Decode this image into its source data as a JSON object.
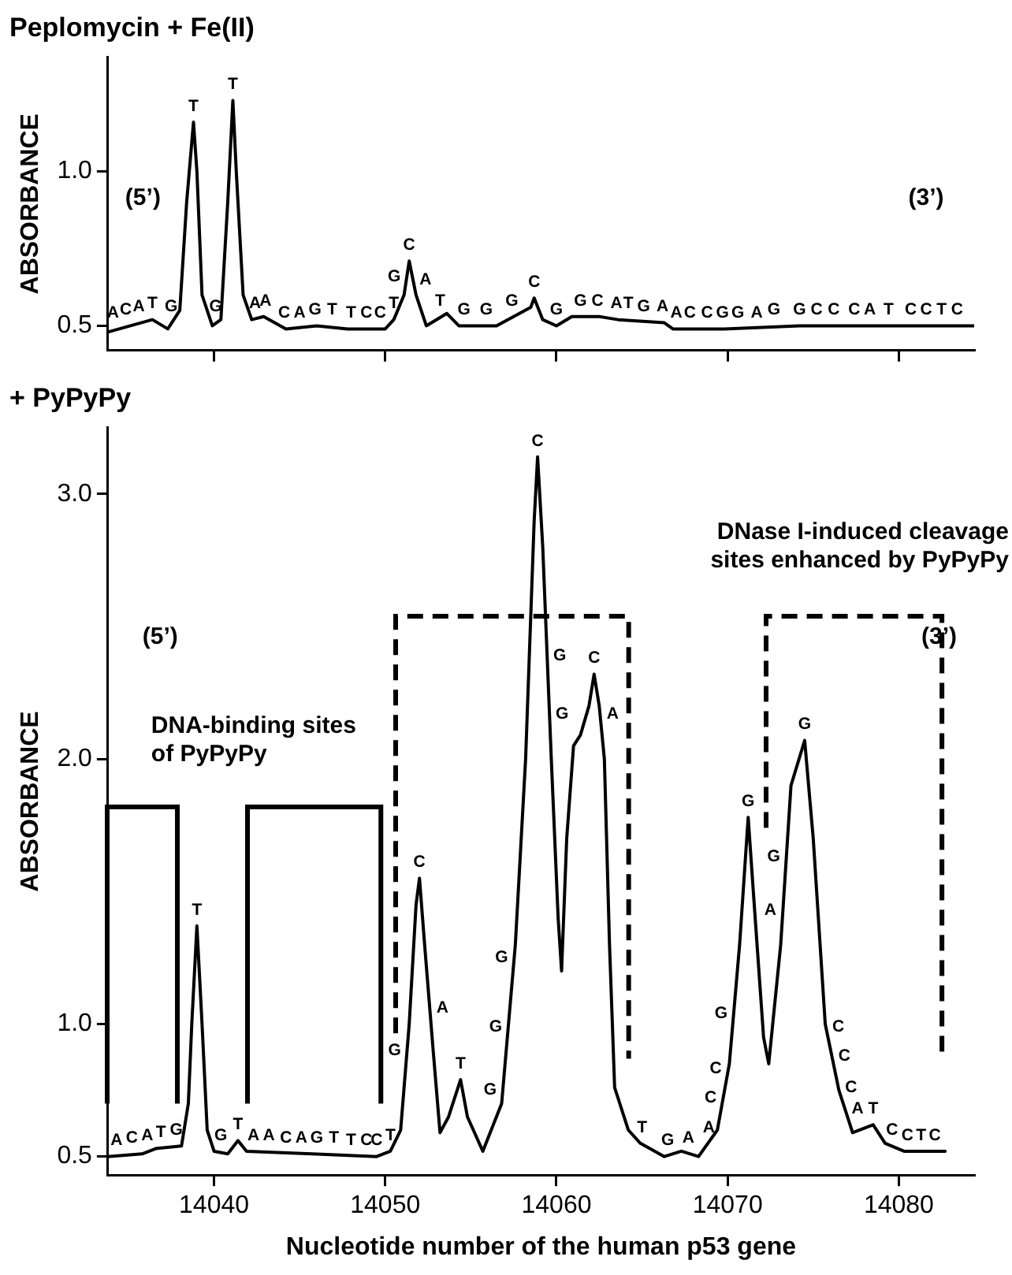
{
  "chart_data": [
    {
      "type": "line",
      "title": "Peplomycin + Fe(II)",
      "ylabel": "ABSORBANCE",
      "xlim": [
        14033.8,
        14084.4
      ],
      "xticks": [
        14040,
        14050,
        14060,
        14070,
        14080
      ],
      "ylim": [
        0.42,
        1.37
      ],
      "yticks": [
        0.5,
        {
          "value": 1,
          "label": "1.0"
        }
      ],
      "tick_labels": "y",
      "grid": false,
      "legend": false,
      "marker": "none",
      "line_style": "solid",
      "series": [
        {
          "color": "#000000",
          "x": [
            14033.8,
            14036.4,
            14037.3,
            14038.0,
            14038.4,
            14038.8,
            14039.0,
            14039.3,
            14039.9,
            14040.4,
            14040.8,
            14041.1,
            14041.3,
            14041.7,
            14042.2,
            14042.9,
            14044.2,
            14046.0,
            14047.8,
            14050.0,
            14050.5,
            14051.1,
            14051.4,
            14051.8,
            14052.4,
            14053.6,
            14054.3,
            14056.5,
            14058.5,
            14058.7,
            14059.2,
            14060.0,
            14060.9,
            14062.5,
            14063.6,
            14066.3,
            14066.8,
            14069.8,
            14074.2,
            14076.4,
            14080.9,
            14084.4
          ],
          "values": [
            0.48,
            0.52,
            0.49,
            0.55,
            0.9,
            1.16,
            1.0,
            0.6,
            0.5,
            0.52,
            0.9,
            1.23,
            1.0,
            0.6,
            0.52,
            0.53,
            0.49,
            0.5,
            0.49,
            0.49,
            0.52,
            0.6,
            0.71,
            0.6,
            0.5,
            0.54,
            0.5,
            0.5,
            0.56,
            0.59,
            0.52,
            0.5,
            0.53,
            0.53,
            0.52,
            0.51,
            0.49,
            0.49,
            0.5,
            0.5,
            0.5,
            0.5
          ]
        }
      ],
      "annotations": [
        "(5’)",
        "(3’)",
        {
          "text": "A",
          "x": 14034.1,
          "y": 0.49
        },
        {
          "text": "C",
          "x": 14034.85,
          "y": 0.5
        },
        {
          "text": "A",
          "x": 14035.6,
          "y": 0.51
        },
        {
          "text": "T",
          "x": 14036.4,
          "y": 0.52
        },
        {
          "text": "G",
          "x": 14037.5,
          "y": 0.51
        },
        {
          "text": "T",
          "x": 14038.8,
          "y": 1.16
        },
        {
          "text": "G",
          "x": 14040.1,
          "y": 0.51
        },
        {
          "text": "T",
          "x": 14041.1,
          "y": 1.23
        },
        {
          "text": "A",
          "x": 14042.4,
          "y": 0.52
        },
        {
          "text": "A",
          "x": 14043.0,
          "y": 0.53
        },
        {
          "text": "C",
          "x": 14044.1,
          "y": 0.49
        },
        {
          "text": "A",
          "x": 14045.0,
          "y": 0.49
        },
        {
          "text": "G",
          "x": 14045.9,
          "y": 0.5
        },
        {
          "text": "T",
          "x": 14046.9,
          "y": 0.5
        },
        {
          "text": "T",
          "x": 14048.0,
          "y": 0.49
        },
        {
          "text": "C",
          "x": 14048.9,
          "y": 0.49
        },
        {
          "text": "C",
          "x": 14049.7,
          "y": 0.49
        },
        {
          "text": "T",
          "x": 14050.5,
          "y": 0.52
        },
        {
          "text": "G",
          "x": 14051.26,
          "y": 0.66
        },
        {
          "text": "C",
          "x": 14051.4,
          "y": 0.71
        },
        {
          "text": "A",
          "x": 14051.62,
          "y": 0.65
        },
        {
          "text": "T",
          "x": 14053.2,
          "y": 0.53
        },
        {
          "text": "G",
          "x": 14054.6,
          "y": 0.5
        },
        {
          "text": "G",
          "x": 14055.9,
          "y": 0.5
        },
        {
          "text": "G",
          "x": 14057.4,
          "y": 0.53
        },
        {
          "text": "C",
          "x": 14058.7,
          "y": 0.59
        },
        {
          "text": "G",
          "x": 14060.0,
          "y": 0.5
        },
        {
          "text": "G",
          "x": 14061.4,
          "y": 0.53
        },
        {
          "text": "C",
          "x": 14062.4,
          "y": 0.53
        },
        {
          "text": "A",
          "x": 14063.5,
          "y": 0.52
        },
        {
          "text": "T",
          "x": 14064.2,
          "y": 0.52
        },
        {
          "text": "G",
          "x": 14065.1,
          "y": 0.51
        },
        {
          "text": "A",
          "x": 14066.2,
          "y": 0.51
        },
        {
          "text": "A",
          "x": 14067.0,
          "y": 0.49
        },
        {
          "text": "C",
          "x": 14067.8,
          "y": 0.49
        },
        {
          "text": "C",
          "x": 14068.8,
          "y": 0.49
        },
        {
          "text": "G",
          "x": 14069.7,
          "y": 0.49
        },
        {
          "text": "G",
          "x": 14070.6,
          "y": 0.49
        },
        {
          "text": "A",
          "x": 14071.7,
          "y": 0.49
        },
        {
          "text": "G",
          "x": 14072.7,
          "y": 0.5
        },
        {
          "text": "G",
          "x": 14074.2,
          "y": 0.5
        },
        {
          "text": "C",
          "x": 14075.2,
          "y": 0.5
        },
        {
          "text": "C",
          "x": 14076.2,
          "y": 0.5
        },
        {
          "text": "C",
          "x": 14077.4,
          "y": 0.5
        },
        {
          "text": "A",
          "x": 14078.3,
          "y": 0.5
        },
        {
          "text": "T",
          "x": 14079.4,
          "y": 0.5
        },
        {
          "text": "C",
          "x": 14080.7,
          "y": 0.5
        },
        {
          "text": "C",
          "x": 14081.6,
          "y": 0.5
        },
        {
          "text": "T",
          "x": 14082.5,
          "y": 0.5
        },
        {
          "text": "C",
          "x": 14083.4,
          "y": 0.5
        }
      ]
    },
    {
      "type": "line",
      "title": "+ PyPyPy",
      "xlabel": "Nucleotide number of the human p53 gene",
      "ylabel": "ABSORBANCE",
      "xlim": [
        14033.8,
        14084.4
      ],
      "xticks": [
        14040,
        14050,
        14060,
        14070,
        14080
      ],
      "ylim": [
        0.43,
        3.25
      ],
      "yticks": [
        0.5,
        {
          "value": 1,
          "label": "1.0"
        },
        {
          "value": 2,
          "label": "2.0"
        },
        {
          "value": 3,
          "label": "3.0"
        }
      ],
      "grid": false,
      "legend": false,
      "marker": "none",
      "line_style": "solid",
      "series": [
        {
          "color": "#000000",
          "x": [
            14033.8,
            14035.8,
            14036.6,
            14038.1,
            14038.5,
            14038.7,
            14039.0,
            14039.3,
            14039.6,
            14040.0,
            14040.8,
            14041.4,
            14041.9,
            14045.7,
            14049.5,
            14050.3,
            14050.9,
            14051.4,
            14051.8,
            14052.0,
            14052.3,
            14052.8,
            14053.2,
            14053.7,
            14054.4,
            14054.8,
            14055.7,
            14056.8,
            14057.6,
            14058.2,
            14058.7,
            14058.9,
            14059.2,
            14059.7,
            14060.1,
            14060.3,
            14060.6,
            14061.0,
            14061.4,
            14061.9,
            14062.2,
            14062.5,
            14062.8,
            14063.1,
            14063.4,
            14064.2,
            14064.9,
            14066.3,
            14067.3,
            14068.3,
            14069.4,
            14070.1,
            14070.7,
            14071.2,
            14071.5,
            14072.1,
            14072.4,
            14073.1,
            14073.7,
            14074.5,
            14075.0,
            14075.7,
            14076.5,
            14077.3,
            14078.5,
            14079.2,
            14080.3,
            14082.7
          ],
          "values": [
            0.5,
            0.51,
            0.53,
            0.54,
            0.7,
            1.0,
            1.37,
            1.0,
            0.6,
            0.52,
            0.51,
            0.56,
            0.52,
            0.51,
            0.5,
            0.52,
            0.6,
            1.0,
            1.45,
            1.55,
            1.3,
            0.9,
            0.59,
            0.65,
            0.79,
            0.65,
            0.52,
            0.7,
            1.3,
            2.0,
            2.9,
            3.14,
            2.8,
            2.0,
            1.4,
            1.2,
            1.7,
            2.05,
            2.09,
            2.2,
            2.32,
            2.2,
            2.0,
            1.3,
            0.76,
            0.6,
            0.55,
            0.5,
            0.52,
            0.5,
            0.6,
            0.85,
            1.3,
            1.78,
            1.5,
            0.95,
            0.85,
            1.3,
            1.9,
            2.07,
            1.7,
            1.0,
            0.75,
            0.59,
            0.62,
            0.55,
            0.52,
            0.52
          ]
        }
      ],
      "annotations": [
        "(5’)",
        "(3’)",
        "DNA-binding sites of PyPyPy",
        "DNase I-induced cleavage sites enhanced by PyPyPy",
        {
          "text": "A",
          "x": 14034.3,
          "y": 0.5
        },
        {
          "text": "C",
          "x": 14035.2,
          "y": 0.51
        },
        {
          "text": "A",
          "x": 14036.1,
          "y": 0.52
        },
        {
          "text": "T",
          "x": 14036.9,
          "y": 0.53
        },
        {
          "text": "G",
          "x": 14037.8,
          "y": 0.54
        },
        {
          "text": "T",
          "x": 14039.0,
          "y": 1.37
        },
        {
          "text": "G",
          "x": 14040.4,
          "y": 0.52
        },
        {
          "text": "T",
          "x": 14041.4,
          "y": 0.56
        },
        {
          "text": "A",
          "x": 14042.3,
          "y": 0.52
        },
        {
          "text": "A",
          "x": 14043.2,
          "y": 0.52
        },
        {
          "text": "C",
          "x": 14044.2,
          "y": 0.51
        },
        {
          "text": "A",
          "x": 14045.1,
          "y": 0.51
        },
        {
          "text": "G",
          "x": 14046.0,
          "y": 0.51
        },
        {
          "text": "T",
          "x": 14047.0,
          "y": 0.51
        },
        {
          "text": "T",
          "x": 14048.0,
          "y": 0.5
        },
        {
          "text": "C",
          "x": 14048.9,
          "y": 0.5
        },
        {
          "text": "C",
          "x": 14049.5,
          "y": 0.5
        },
        {
          "text": "T",
          "x": 14050.3,
          "y": 0.52
        },
        {
          "text": "G",
          "x": 14051.28,
          "y": 0.9
        },
        {
          "text": "C",
          "x": 14052.0,
          "y": 1.55
        },
        {
          "text": "A",
          "x": 14052.6,
          "y": 1.06
        },
        {
          "text": "T",
          "x": 14054.4,
          "y": 0.79
        },
        {
          "text": "G",
          "x": 14056.87,
          "y": 0.75
        },
        {
          "text": "G",
          "x": 14057.19,
          "y": 0.99
        },
        {
          "text": "G",
          "x": 14057.53,
          "y": 1.25
        },
        {
          "text": "C",
          "x": 14058.9,
          "y": 3.14
        },
        {
          "text": "G",
          "x": 14059.46,
          "y": 2.39
        },
        {
          "text": "G",
          "x": 14059.59,
          "y": 2.17
        },
        {
          "text": "C",
          "x": 14062.2,
          "y": 2.32
        },
        {
          "text": "A",
          "x": 14062.55,
          "y": 2.17
        },
        {
          "text": "T",
          "x": 14065.0,
          "y": 0.55
        },
        {
          "text": "G",
          "x": 14066.5,
          "y": 0.5
        },
        {
          "text": "A",
          "x": 14067.7,
          "y": 0.51
        },
        {
          "text": "A",
          "x": 14068.9,
          "y": 0.55
        },
        {
          "text": "C",
          "x": 14069.74,
          "y": 0.72
        },
        {
          "text": "C",
          "x": 14070.04,
          "y": 0.83
        },
        {
          "text": "G",
          "x": 14070.35,
          "y": 1.04
        },
        {
          "text": "G",
          "x": 14071.2,
          "y": 1.78
        },
        {
          "text": "A",
          "x": 14073.23,
          "y": 1.43
        },
        {
          "text": "G",
          "x": 14073.43,
          "y": 1.63
        },
        {
          "text": "G",
          "x": 14074.5,
          "y": 2.07
        },
        {
          "text": "C",
          "x": 14075.73,
          "y": 0.99
        },
        {
          "text": "C",
          "x": 14076.08,
          "y": 0.88
        },
        {
          "text": "C",
          "x": 14076.47,
          "y": 0.76
        },
        {
          "text": "A",
          "x": 14076.85,
          "y": 0.68
        },
        {
          "text": "T",
          "x": 14078.5,
          "y": 0.62
        },
        {
          "text": "C",
          "x": 14079.6,
          "y": 0.54
        },
        {
          "text": "C",
          "x": 14080.5,
          "y": 0.52
        },
        {
          "text": "T",
          "x": 14081.3,
          "y": 0.52
        },
        {
          "text": "C",
          "x": 14082.1,
          "y": 0.52
        }
      ]
    }
  ]
}
